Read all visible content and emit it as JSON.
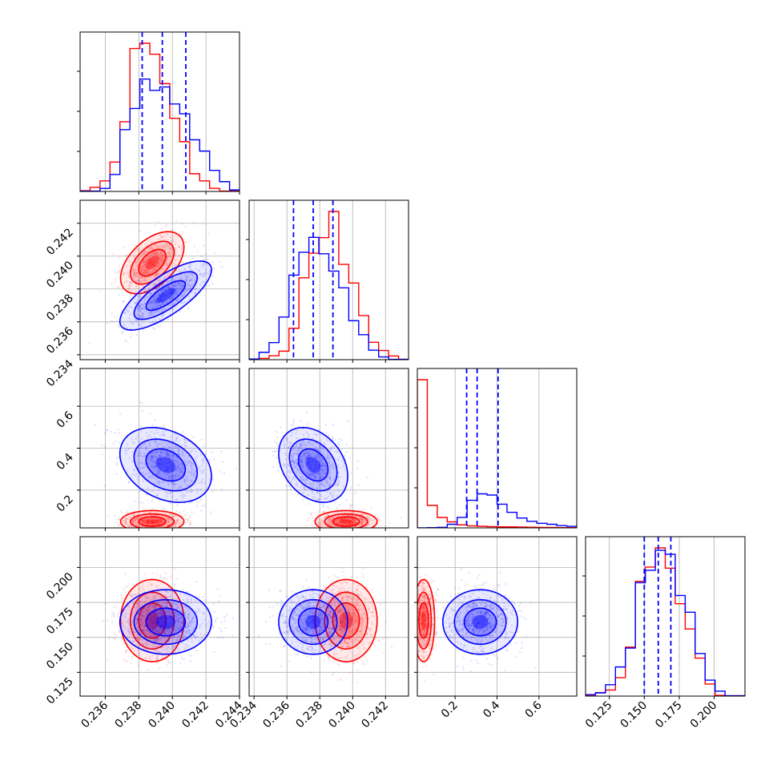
{
  "figure": {
    "type": "corner-plot",
    "n_params": 4
  },
  "colors": {
    "red": "#ff0000",
    "blue": "#0000ff",
    "grid": "#b0b0b0",
    "axis": "#000000"
  },
  "chart_data": {
    "type": "corner",
    "title": "",
    "params": [
      {
        "range": [
          0.2345,
          0.244
        ],
        "ticks": [
          0.236,
          0.238,
          0.24,
          0.242,
          0.244
        ],
        "tick_labels": [
          "0.236",
          "0.238",
          "0.240",
          "0.242",
          "0.244"
        ]
      },
      {
        "range": [
          0.2337,
          0.2434
        ],
        "ticks": [
          0.234,
          0.236,
          0.238,
          0.24,
          0.242
        ],
        "tick_labels": [
          "0.234",
          "0.236",
          "0.238",
          "0.240",
          "0.242"
        ]
      },
      {
        "range": [
          0.02,
          0.78
        ],
        "ticks": [
          0.2,
          0.4,
          0.6
        ],
        "tick_labels": [
          "0.2",
          "0.4",
          "0.6"
        ]
      },
      {
        "range": [
          0.108,
          0.222
        ],
        "ticks": [
          0.125,
          0.15,
          0.175,
          0.2
        ],
        "tick_labels": [
          "0.125",
          "0.150",
          "0.175",
          "0.200"
        ]
      }
    ],
    "series": [
      {
        "color": "#ff0000",
        "means": [
          0.2388,
          0.2396,
          0.05,
          0.162
        ],
        "sds": [
          0.0009,
          0.0009,
          0.025,
          0.014
        ],
        "correlations": {
          "0-1": 0.5,
          "0-2": 0.0,
          "0-3": 0.0,
          "1-2": 0.0,
          "1-3": 0.0,
          "2-3": 0.0
        },
        "hist": [
          [
            0.0008,
            0.0044,
            0.0112,
            0.0312,
            0.074,
            0.1516,
            0.1572,
            0.1456,
            0.1144,
            0.0776,
            0.0528,
            0.0188,
            0.0112,
            0.0032,
            0.0004,
            0.0004
          ],
          [
            0.0008,
            0.0016,
            0.0052,
            0.0112,
            0.0412,
            0.1076,
            0.14,
            0.1604,
            0.1948,
            0.1252,
            0.1008,
            0.058,
            0.0228,
            0.012,
            0.0048,
            0.0004
          ],
          [
            0.74,
            0.112,
            0.052,
            0.03,
            0.015,
            0.01,
            0.008,
            0.006,
            0.005,
            0.005,
            0.004,
            0.003,
            0.002,
            0.002,
            0.001,
            0.001
          ],
          [
            0.0012,
            0.004,
            0.0068,
            0.0208,
            0.0552,
            0.1292,
            0.1452,
            0.1668,
            0.144,
            0.104,
            0.0756,
            0.0428,
            0.0136,
            0.0008,
            0.0004,
            0.0004
          ]
        ]
      },
      {
        "color": "#0000ff",
        "means": [
          0.2396,
          0.2376,
          0.32,
          0.161
        ],
        "sds": [
          0.0013,
          0.001,
          0.085,
          0.011
        ],
        "correlations": {
          "0-1": 0.75,
          "0-2": -0.3,
          "0-3": 0.0,
          "1-2": -0.3,
          "1-3": 0.0,
          "2-3": 0.0
        },
        "quantiles": [
          [
            0.2382,
            0.2394,
            0.2408
          ],
          [
            0.2364,
            0.2376,
            0.2388
          ],
          [
            0.255,
            0.305,
            0.405
          ],
          [
            0.15,
            0.16,
            0.169
          ]
        ],
        "hist": [
          [
            0.0004,
            0.0004,
            0.0032,
            0.018,
            0.0656,
            0.088,
            0.1192,
            0.1072,
            0.1108,
            0.0928,
            0.0824,
            0.0548,
            0.0428,
            0.0224,
            0.0104,
            0.0016
          ],
          [
            0.0008,
            0.0096,
            0.0224,
            0.056,
            0.1112,
            0.1412,
            0.1608,
            0.1392,
            0.1164,
            0.0944,
            0.0512,
            0.0328,
            0.0124,
            0.0036,
            0.0004,
            0.0004
          ],
          [
            0.0004,
            0.0012,
            0.0028,
            0.018,
            0.0524,
            0.1376,
            0.17,
            0.164,
            0.1184,
            0.0776,
            0.0492,
            0.0328,
            0.0228,
            0.018,
            0.0112,
            0.0076
          ],
          [
            0.0016,
            0.0036,
            0.0128,
            0.0328,
            0.054,
            0.1276,
            0.1416,
            0.164,
            0.1596,
            0.1132,
            0.0944,
            0.048,
            0.018,
            0.0056,
            0.0004,
            0.0004
          ]
        ]
      }
    ],
    "grid": true,
    "legend": "none"
  }
}
